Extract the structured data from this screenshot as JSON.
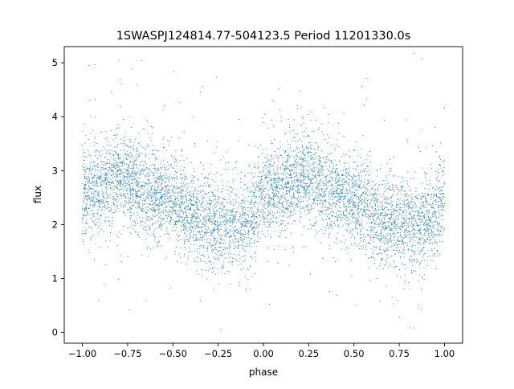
{
  "chart_data": {
    "type": "scatter",
    "title": "1SWASPJ124814.77-504123.5 Period 11201330.0s",
    "xlabel": "phase",
    "ylabel": "flux",
    "xlim": [
      -1.1,
      1.1
    ],
    "ylim": [
      -0.2,
      5.3
    ],
    "xticks": [
      -1.0,
      -0.75,
      -0.5,
      -0.25,
      0.0,
      0.25,
      0.5,
      0.75,
      1.0
    ],
    "xtick_labels": [
      "−1.00",
      "−0.75",
      "−0.50",
      "−0.25",
      "0.00",
      "0.25",
      "0.50",
      "0.75",
      "1.00"
    ],
    "yticks": [
      0,
      1,
      2,
      3,
      4,
      5
    ],
    "ytick_labels": [
      "0",
      "1",
      "2",
      "3",
      "4",
      "5"
    ],
    "grid": false,
    "marker_color": "#1f77b4",
    "phase_range": [
      -1.0,
      1.0
    ],
    "mean_flux_profile": [
      {
        "x": -1.0,
        "y": 2.6
      },
      {
        "x": -0.9,
        "y": 2.7
      },
      {
        "x": -0.8,
        "y": 2.9
      },
      {
        "x": -0.75,
        "y": 2.85
      },
      {
        "x": -0.65,
        "y": 2.6
      },
      {
        "x": -0.55,
        "y": 2.55
      },
      {
        "x": -0.45,
        "y": 2.35
      },
      {
        "x": -0.35,
        "y": 2.1
      },
      {
        "x": -0.25,
        "y": 2.05
      },
      {
        "x": -0.15,
        "y": 1.95
      },
      {
        "x": -0.05,
        "y": 2.2
      },
      {
        "x": 0.0,
        "y": 2.6
      },
      {
        "x": 0.1,
        "y": 2.7
      },
      {
        "x": 0.2,
        "y": 2.9
      },
      {
        "x": 0.25,
        "y": 2.85
      },
      {
        "x": 0.35,
        "y": 2.6
      },
      {
        "x": 0.45,
        "y": 2.55
      },
      {
        "x": 0.55,
        "y": 2.35
      },
      {
        "x": 0.65,
        "y": 2.1
      },
      {
        "x": 0.75,
        "y": 2.05
      },
      {
        "x": 0.85,
        "y": 1.95
      },
      {
        "x": 0.95,
        "y": 2.2
      },
      {
        "x": 1.0,
        "y": 2.6
      }
    ],
    "scatter_sigma": 0.42,
    "n_points": 7000
  }
}
